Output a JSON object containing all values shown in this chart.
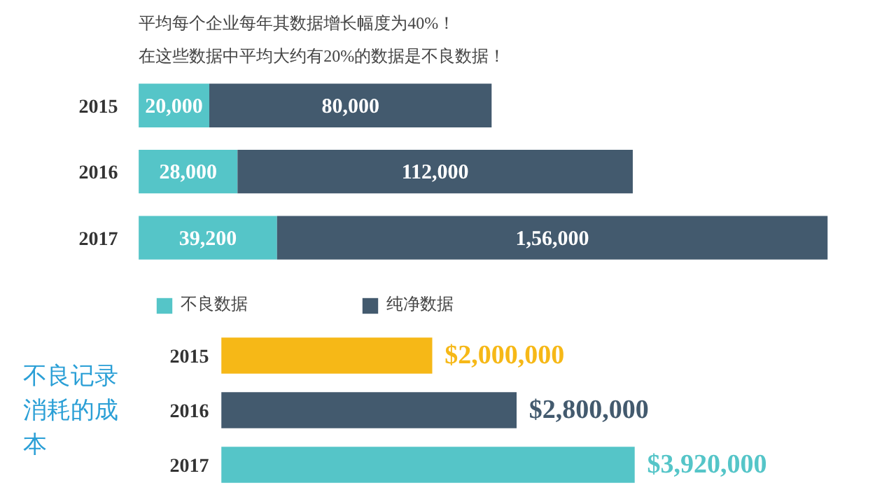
{
  "chart_data": [
    {
      "type": "bar",
      "orientation": "horizontal",
      "stacked": true,
      "data_labels": true,
      "legend": "bottom left",
      "grid": false,
      "annotations": [
        "平均每个企业每年其数据增长幅度为40%！",
        "在这些数据中平均大约有20%的数据是不良数据！"
      ],
      "categories": [
        "2015",
        "2016",
        "2017"
      ],
      "series": [
        {
          "name": "不良数据",
          "color": "#55c5c8",
          "values": [
            20000,
            28000,
            39200
          ],
          "value_labels": [
            "20,000",
            "28,000",
            "39,200"
          ]
        },
        {
          "name": "纯净数据",
          "color": "#435a6e",
          "values": [
            80000,
            112000,
            156000
          ],
          "value_labels": [
            "80,000",
            "112,000",
            "1,56,000"
          ]
        }
      ]
    },
    {
      "type": "bar",
      "orientation": "horizontal",
      "title": "不良记录消耗的成本",
      "grid": false,
      "data_labels": true,
      "categories": [
        "2015",
        "2016",
        "2017"
      ],
      "values": [
        2000000,
        2800000,
        3920000
      ],
      "colors": [
        "#f6b817",
        "#435a6e",
        "#55c5c8"
      ],
      "value_labels": [
        "$2,000,000",
        "$2,800,000",
        "$3,920,000"
      ]
    }
  ]
}
